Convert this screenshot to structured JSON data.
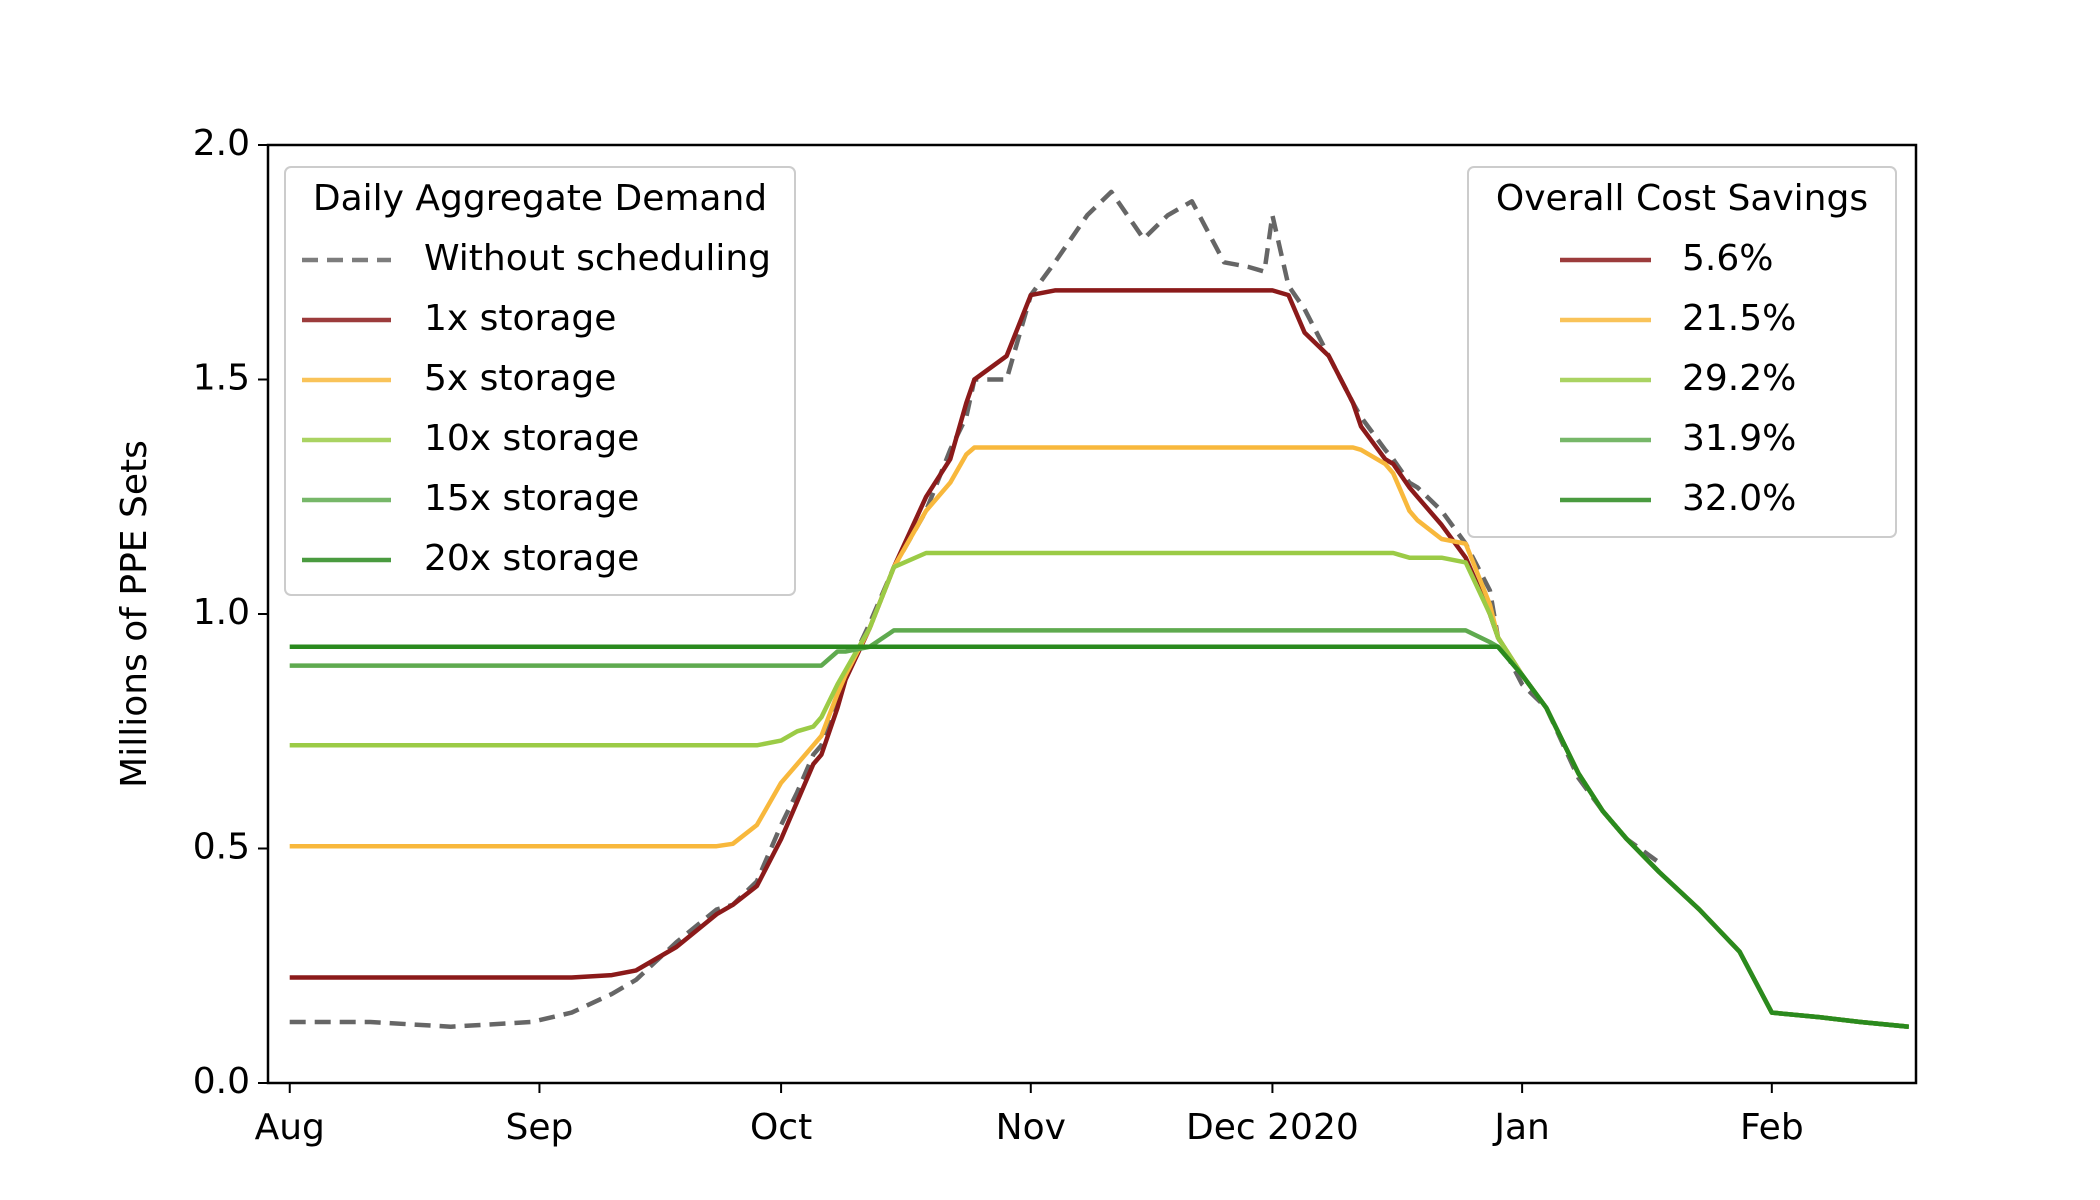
{
  "chart_data": {
    "type": "line",
    "y_label": "Millions of PPE Sets",
    "x": [
      0,
      10,
      20,
      30,
      35,
      40,
      43,
      48,
      53,
      55,
      58,
      61,
      63,
      65,
      66,
      68,
      69,
      72,
      75,
      79,
      82,
      84,
      85,
      89,
      92,
      95,
      99,
      102,
      106,
      109,
      112,
      116,
      119,
      121,
      122,
      124,
      126,
      129,
      132,
      133,
      136,
      137,
      139,
      140,
      143,
      146,
      149,
      150,
      153,
      156,
      160,
      163,
      166,
      170,
      175,
      180,
      184,
      190,
      195,
      201
    ],
    "xlim": [
      -2.7,
      201.9
    ],
    "xticks": [
      {
        "value": 0,
        "label": "Aug"
      },
      {
        "value": 31,
        "label": "Sep"
      },
      {
        "value": 61,
        "label": "Oct"
      },
      {
        "value": 92,
        "label": "Nov"
      },
      {
        "value": 122,
        "label": "Dec 2020"
      },
      {
        "value": 153,
        "label": "Jan"
      },
      {
        "value": 184,
        "label": "Feb"
      }
    ],
    "ylim": [
      0,
      2
    ],
    "yticks": [
      {
        "value": 0,
        "label": "0.0"
      },
      {
        "value": 0.5,
        "label": "0.5"
      },
      {
        "value": 1,
        "label": "1.0"
      },
      {
        "value": 1.5,
        "label": "1.5"
      },
      {
        "value": 2,
        "label": "2.0"
      }
    ],
    "legend_title": "Daily Aggregate Demand",
    "series": [
      {
        "name": "Without scheduling",
        "color": "#666666",
        "style": "dashed",
        "values": [
          0.13,
          0.13,
          0.12,
          0.13,
          0.15,
          0.19,
          0.22,
          0.3,
          0.37,
          0.38,
          0.43,
          0.55,
          0.62,
          0.7,
          0.72,
          0.82,
          0.87,
          0.98,
          1.1,
          1.22,
          1.35,
          1.42,
          1.5,
          1.5,
          1.68,
          1.75,
          1.85,
          1.9,
          1.8,
          1.85,
          1.88,
          1.75,
          1.74,
          1.73,
          1.85,
          1.7,
          1.65,
          1.55,
          1.45,
          1.42,
          1.35,
          1.33,
          1.28,
          1.27,
          1.22,
          1.15,
          1.05,
          0.95,
          0.85,
          0.8,
          0.65,
          0.58,
          0.52,
          0.47,
          null,
          null,
          null,
          null,
          null,
          null
        ]
      },
      {
        "name": "1x storage",
        "color": "#8b1a1a",
        "style": "solid",
        "values": [
          0.225,
          0.225,
          0.225,
          0.225,
          0.225,
          0.23,
          0.24,
          0.29,
          0.36,
          0.38,
          0.42,
          0.52,
          0.6,
          0.68,
          0.7,
          0.8,
          0.86,
          0.97,
          1.1,
          1.25,
          1.33,
          1.45,
          1.5,
          1.55,
          1.68,
          1.69,
          1.69,
          1.69,
          1.69,
          1.69,
          1.69,
          1.69,
          1.69,
          1.69,
          1.69,
          1.68,
          1.6,
          1.55,
          1.45,
          1.4,
          1.33,
          1.32,
          1.27,
          1.25,
          1.19,
          1.12,
          1.0,
          0.95,
          0.87,
          0.8,
          0.66,
          0.58,
          0.52,
          0.45,
          0.37,
          0.28,
          0.15,
          0.14,
          0.13,
          0.12
        ]
      },
      {
        "name": "5x storage",
        "color": "#f8b83c",
        "style": "solid",
        "values": [
          0.505,
          0.505,
          0.505,
          0.505,
          0.505,
          0.505,
          0.505,
          0.505,
          0.505,
          0.51,
          0.55,
          0.64,
          0.68,
          0.72,
          0.74,
          0.83,
          0.87,
          0.97,
          1.1,
          1.22,
          1.28,
          1.34,
          1.355,
          1.355,
          1.355,
          1.355,
          1.355,
          1.355,
          1.355,
          1.355,
          1.355,
          1.355,
          1.355,
          1.355,
          1.355,
          1.355,
          1.355,
          1.355,
          1.355,
          1.35,
          1.32,
          1.3,
          1.22,
          1.2,
          1.16,
          1.15,
          1.02,
          0.95,
          0.87,
          0.8,
          0.66,
          0.58,
          0.52,
          0.45,
          0.37,
          0.28,
          0.15,
          0.14,
          0.13,
          0.12
        ]
      },
      {
        "name": "10x storage",
        "color": "#9bcb46",
        "style": "solid",
        "values": [
          0.72,
          0.72,
          0.72,
          0.72,
          0.72,
          0.72,
          0.72,
          0.72,
          0.72,
          0.72,
          0.72,
          0.73,
          0.75,
          0.76,
          0.78,
          0.85,
          0.88,
          0.97,
          1.1,
          1.13,
          1.13,
          1.13,
          1.13,
          1.13,
          1.13,
          1.13,
          1.13,
          1.13,
          1.13,
          1.13,
          1.13,
          1.13,
          1.13,
          1.13,
          1.13,
          1.13,
          1.13,
          1.13,
          1.13,
          1.13,
          1.13,
          1.13,
          1.12,
          1.12,
          1.12,
          1.11,
          1.0,
          0.95,
          0.87,
          0.8,
          0.66,
          0.58,
          0.52,
          0.45,
          0.37,
          0.28,
          0.15,
          0.14,
          0.13,
          0.12
        ]
      },
      {
        "name": "15x storage",
        "color": "#5faa4f",
        "style": "solid",
        "values": [
          0.89,
          0.89,
          0.89,
          0.89,
          0.89,
          0.89,
          0.89,
          0.89,
          0.89,
          0.89,
          0.89,
          0.89,
          0.89,
          0.89,
          0.89,
          0.92,
          0.92,
          0.93,
          0.965,
          0.965,
          0.965,
          0.965,
          0.965,
          0.965,
          0.965,
          0.965,
          0.965,
          0.965,
          0.965,
          0.965,
          0.965,
          0.965,
          0.965,
          0.965,
          0.965,
          0.965,
          0.965,
          0.965,
          0.965,
          0.965,
          0.965,
          0.965,
          0.965,
          0.965,
          0.965,
          0.965,
          0.94,
          0.93,
          0.87,
          0.8,
          0.66,
          0.58,
          0.52,
          0.45,
          0.37,
          0.28,
          0.15,
          0.14,
          0.13,
          0.12
        ]
      },
      {
        "name": "20x storage",
        "color": "#2a8a1e",
        "style": "solid",
        "values": [
          0.93,
          0.93,
          0.93,
          0.93,
          0.93,
          0.93,
          0.93,
          0.93,
          0.93,
          0.93,
          0.93,
          0.93,
          0.93,
          0.93,
          0.93,
          0.93,
          0.93,
          0.93,
          0.93,
          0.93,
          0.93,
          0.93,
          0.93,
          0.93,
          0.93,
          0.93,
          0.93,
          0.93,
          0.93,
          0.93,
          0.93,
          0.93,
          0.93,
          0.93,
          0.93,
          0.93,
          0.93,
          0.93,
          0.93,
          0.93,
          0.93,
          0.93,
          0.93,
          0.93,
          0.93,
          0.93,
          0.93,
          0.93,
          0.87,
          0.8,
          0.66,
          0.58,
          0.52,
          0.45,
          0.37,
          0.28,
          0.15,
          0.14,
          0.13,
          0.12
        ]
      }
    ],
    "savings_legend": {
      "title": "Overall Cost Savings",
      "values": [
        5.6,
        21.5,
        29.2,
        31.9,
        32.0
      ],
      "value_labels": [
        "5.6%",
        "21.5%",
        "29.2%",
        "31.9%",
        "32.0%"
      ]
    }
  }
}
